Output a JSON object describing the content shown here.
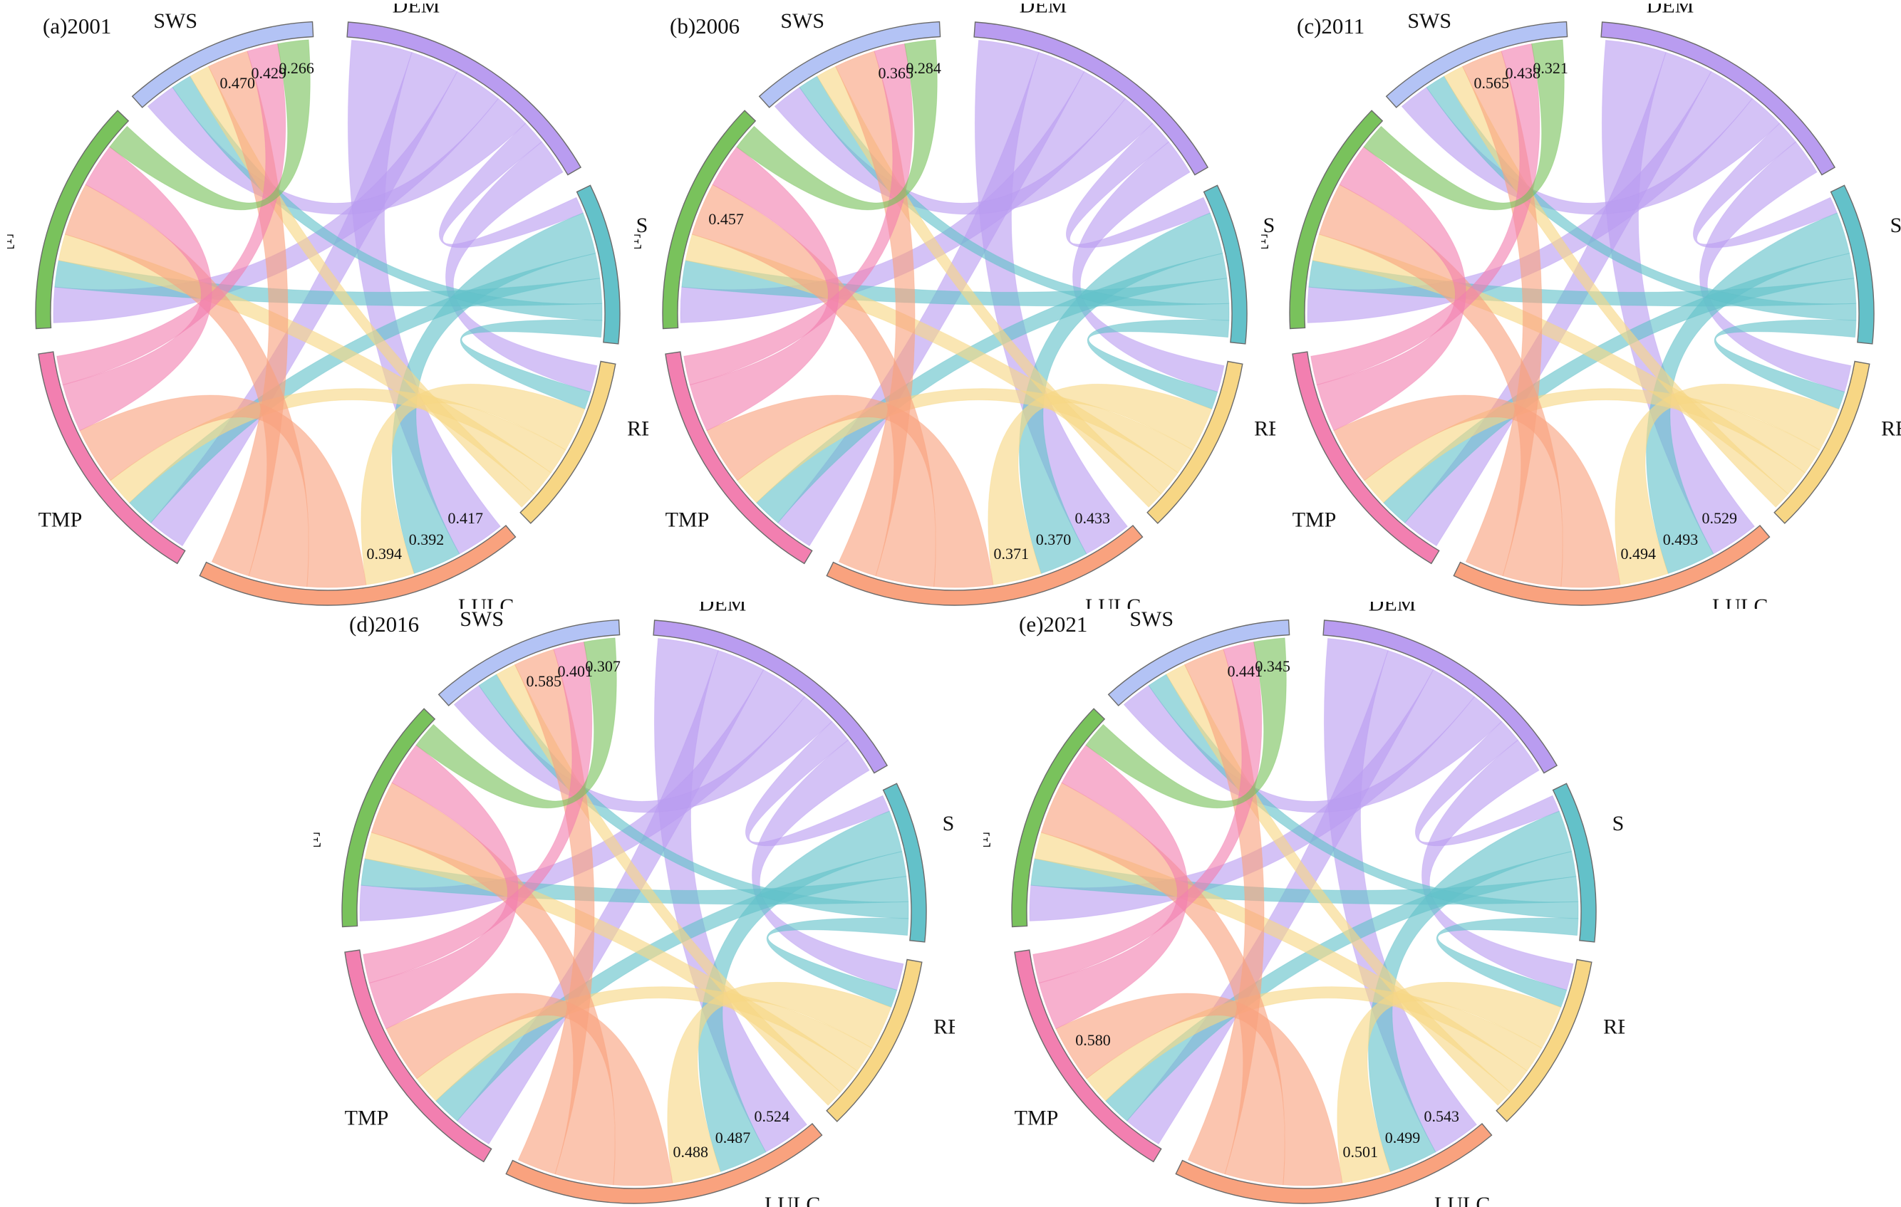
{
  "chart_data": [
    {
      "type": "chord",
      "title": "(a)2001",
      "sectors": [
        "DEM",
        "SLOP",
        "REL",
        "LULC",
        "TMP",
        "PRE",
        "SWS"
      ],
      "colors": {
        "DEM": "#b99cf0",
        "SLOP": "#63c1c9",
        "REL": "#f7d684",
        "LULC": "#f9a27e",
        "TMP": "#f27fb0",
        "PRE": "#79c25c",
        "SWS": "#b3c3f5"
      },
      "annotations": [
        {
          "from": "LULC",
          "to": "SLOP",
          "value": "0.392"
        },
        {
          "from": "LULC",
          "to": "REL",
          "value": "0.394"
        },
        {
          "from": "LULC",
          "to": "DEM",
          "value": "0.417"
        },
        {
          "from": "SWS",
          "to": "LULC",
          "value": "0.470"
        },
        {
          "from": "SWS",
          "to": "TMP",
          "value": "0.429"
        },
        {
          "from": "SWS",
          "to": "PRE",
          "value": "0.266"
        }
      ]
    },
    {
      "type": "chord",
      "title": "(b)2006",
      "sectors": [
        "DEM",
        "SLOP",
        "REL",
        "LULC",
        "TMP",
        "PRE",
        "SWS"
      ],
      "colors": {
        "DEM": "#b99cf0",
        "SLOP": "#63c1c9",
        "REL": "#f7d684",
        "LULC": "#f9a27e",
        "TMP": "#f27fb0",
        "PRE": "#79c25c",
        "SWS": "#b3c3f5"
      },
      "annotations": [
        {
          "from": "LULC",
          "to": "SLOP",
          "value": "0.370"
        },
        {
          "from": "LULC",
          "to": "REL",
          "value": "0.371"
        },
        {
          "from": "LULC",
          "to": "DEM",
          "value": "0.433"
        },
        {
          "from": "SWS",
          "to": "TMP",
          "value": "0.365"
        },
        {
          "from": "SWS",
          "to": "PRE",
          "value": "0.284"
        },
        {
          "from": "PRE",
          "to": "LULC",
          "value": "0.457"
        }
      ]
    },
    {
      "type": "chord",
      "title": "(c)2011",
      "sectors": [
        "DEM",
        "SLOP",
        "REL",
        "LULC",
        "TMP",
        "PRE",
        "SWS"
      ],
      "colors": {
        "DEM": "#b99cf0",
        "SLOP": "#63c1c9",
        "REL": "#f7d684",
        "LULC": "#f9a27e",
        "TMP": "#f27fb0",
        "PRE": "#79c25c",
        "SWS": "#b3c3f5"
      },
      "annotations": [
        {
          "from": "LULC",
          "to": "SLOP",
          "value": "0.493"
        },
        {
          "from": "LULC",
          "to": "REL",
          "value": "0.494"
        },
        {
          "from": "LULC",
          "to": "DEM",
          "value": "0.529"
        },
        {
          "from": "SWS",
          "to": "LULC",
          "value": "0.565"
        },
        {
          "from": "SWS",
          "to": "TMP",
          "value": "0.438"
        },
        {
          "from": "SWS",
          "to": "PRE",
          "value": "0.321"
        }
      ]
    },
    {
      "type": "chord",
      "title": "(d)2016",
      "sectors": [
        "DEM",
        "SLOP",
        "REL",
        "LULC",
        "TMP",
        "PRE",
        "SWS"
      ],
      "colors": {
        "DEM": "#b99cf0",
        "SLOP": "#63c1c9",
        "REL": "#f7d684",
        "LULC": "#f9a27e",
        "TMP": "#f27fb0",
        "PRE": "#79c25c",
        "SWS": "#b3c3f5"
      },
      "annotations": [
        {
          "from": "LULC",
          "to": "SLOP",
          "value": "0.487"
        },
        {
          "from": "LULC",
          "to": "REL",
          "value": "0.488"
        },
        {
          "from": "LULC",
          "to": "DEM",
          "value": "0.524"
        },
        {
          "from": "SWS",
          "to": "LULC",
          "value": "0.585"
        },
        {
          "from": "SWS",
          "to": "TMP",
          "value": "0.401"
        },
        {
          "from": "SWS",
          "to": "PRE",
          "value": "0.307"
        }
      ]
    },
    {
      "type": "chord",
      "title": "(e)2021",
      "sectors": [
        "DEM",
        "SLOP",
        "REL",
        "LULC",
        "TMP",
        "PRE",
        "SWS"
      ],
      "colors": {
        "DEM": "#b99cf0",
        "SLOP": "#63c1c9",
        "REL": "#f7d684",
        "LULC": "#f9a27e",
        "TMP": "#f27fb0",
        "PRE": "#79c25c",
        "SWS": "#b3c3f5"
      },
      "annotations": [
        {
          "from": "LULC",
          "to": "SLOP",
          "value": "0.499"
        },
        {
          "from": "LULC",
          "to": "REL",
          "value": "0.501"
        },
        {
          "from": "LULC",
          "to": "DEM",
          "value": "0.543"
        },
        {
          "from": "SWS",
          "to": "TMP",
          "value": "0.441"
        },
        {
          "from": "SWS",
          "to": "PRE",
          "value": "0.345"
        },
        {
          "from": "TMP",
          "to": "LULC",
          "value": "0.580"
        }
      ]
    }
  ]
}
